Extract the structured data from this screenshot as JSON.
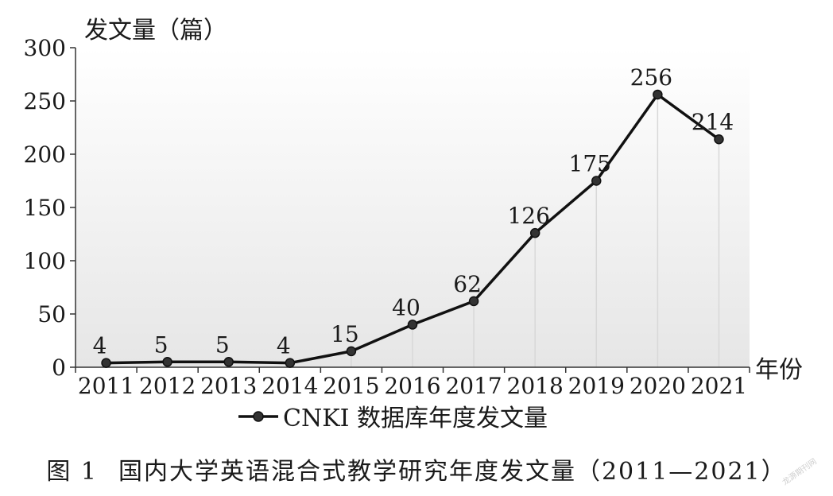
{
  "chart_data": {
    "type": "line",
    "ylabel": "发文量（篇）",
    "xlabel": "年份",
    "x": [
      "2011",
      "2012",
      "2013",
      "2014",
      "2015",
      "2016",
      "2017",
      "2018",
      "2019",
      "2020",
      "2021"
    ],
    "series": [
      {
        "name": "CNKI 数据库年度发文量",
        "values": [
          4,
          5,
          5,
          4,
          15,
          40,
          62,
          126,
          175,
          256,
          214
        ]
      }
    ],
    "ylim": [
      0,
      300
    ],
    "yticks": [
      0,
      50,
      100,
      150,
      200,
      250,
      300
    ],
    "data_labels": true,
    "legend": "bottom",
    "line_color": "#111111"
  },
  "caption": {
    "figure_no": "图 1",
    "text": "国内大学英语混合式教学研究年度发文量（2011—2021）"
  },
  "watermark": "龙源期刊网"
}
